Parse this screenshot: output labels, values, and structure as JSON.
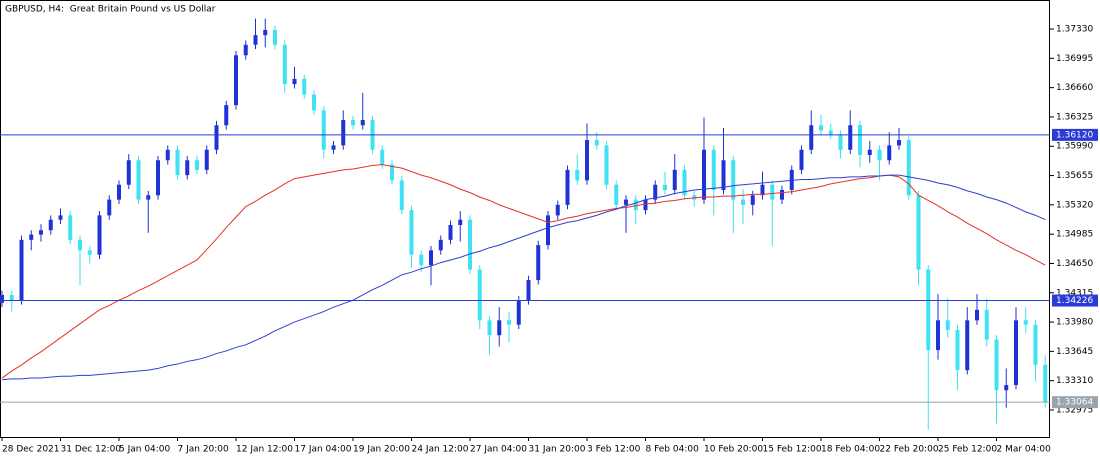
{
  "chart_data": {
    "type": "candlestick",
    "title": "GBPUSD, H4:  Great Britain Pound vs US Dollar",
    "up_color": "#1f32d6",
    "down_color": "#3ee2f2",
    "ylim": [
      1.32666,
      1.37662
    ],
    "yticks": [
      {
        "value": 1.3733,
        "label": "1.37330"
      },
      {
        "value": 1.36995,
        "label": "1.36995"
      },
      {
        "value": 1.3666,
        "label": "1.36660"
      },
      {
        "value": 1.36325,
        "label": "1.36325"
      },
      {
        "value": 1.3599,
        "label": "1.35990"
      },
      {
        "value": 1.35655,
        "label": "1.35655"
      },
      {
        "value": 1.3532,
        "label": "1.35320"
      },
      {
        "value": 1.34985,
        "label": "1.34985"
      },
      {
        "value": 1.3465,
        "label": "1.34650"
      },
      {
        "value": 1.34315,
        "label": "1.34315"
      },
      {
        "value": 1.3398,
        "label": "1.33980"
      },
      {
        "value": 1.33645,
        "label": "1.33645"
      },
      {
        "value": 1.3331,
        "label": "1.33310"
      },
      {
        "value": 1.32975,
        "label": "1.32975"
      }
    ],
    "hlines": [
      {
        "value": 1.3612,
        "label": "1.36120",
        "color": "#2b3bd6"
      },
      {
        "value": 1.34226,
        "label": "1.34226",
        "color": "#2b3bd6"
      },
      {
        "value": 1.33064,
        "label": "1.33064",
        "color": "#9aa4ad"
      }
    ],
    "categories": [
      "28 Dec 2021",
      null,
      null,
      null,
      null,
      null,
      "31 Dec 12:00",
      null,
      null,
      null,
      null,
      null,
      "5 Jan 04:00",
      null,
      null,
      null,
      null,
      null,
      "7 Jan 20:00",
      null,
      null,
      null,
      null,
      null,
      "12 Jan 12:00",
      null,
      null,
      null,
      null,
      null,
      "17 Jan 04:00",
      null,
      null,
      null,
      null,
      null,
      "19 Jan 20:00",
      null,
      null,
      null,
      null,
      null,
      "24 Jan 12:00",
      null,
      null,
      null,
      null,
      null,
      "27 Jan 04:00",
      null,
      null,
      null,
      null,
      null,
      "31 Jan 20:00",
      null,
      null,
      null,
      null,
      null,
      "3 Feb 12:00",
      null,
      null,
      null,
      null,
      null,
      "8 Feb 04:00",
      null,
      null,
      null,
      null,
      null,
      "10 Feb 20:00",
      null,
      null,
      null,
      null,
      null,
      "15 Feb 12:00",
      null,
      null,
      null,
      null,
      null,
      "18 Feb 04:00",
      null,
      null,
      null,
      null,
      null,
      "22 Feb 20:00",
      null,
      null,
      null,
      null,
      null,
      "25 Feb 12:00",
      null,
      null,
      null,
      null,
      null,
      "2 Mar 04:00",
      null,
      null,
      null,
      null,
      null
    ],
    "ohlc": [
      [
        1.342,
        1.3434,
        1.3415,
        1.3429
      ],
      [
        1.3429,
        1.3434,
        1.341,
        1.3423
      ],
      [
        1.3423,
        1.3497,
        1.3418,
        1.3492
      ],
      [
        1.3492,
        1.3503,
        1.348,
        1.3498
      ],
      [
        1.3498,
        1.351,
        1.349,
        1.3503
      ],
      [
        1.3503,
        1.352,
        1.3498,
        1.3515
      ],
      [
        1.3515,
        1.3528,
        1.351,
        1.352
      ],
      [
        1.352,
        1.3525,
        1.3487,
        1.3492
      ],
      [
        1.3492,
        1.3497,
        1.344,
        1.348
      ],
      [
        1.348,
        1.3485,
        1.3465,
        1.3475
      ],
      [
        1.3475,
        1.3525,
        1.347,
        1.352
      ],
      [
        1.352,
        1.3543,
        1.3515,
        1.3538
      ],
      [
        1.3538,
        1.356,
        1.3533,
        1.3555
      ],
      [
        1.3555,
        1.359,
        1.355,
        1.3583
      ],
      [
        1.3583,
        1.3588,
        1.3533,
        1.3538
      ],
      [
        1.3538,
        1.3548,
        1.35,
        1.3543
      ],
      [
        1.3543,
        1.3588,
        1.3538,
        1.3583
      ],
      [
        1.3583,
        1.36,
        1.3578,
        1.3595
      ],
      [
        1.3595,
        1.36,
        1.3561,
        1.3566
      ],
      [
        1.3566,
        1.3588,
        1.3561,
        1.3583
      ],
      [
        1.3583,
        1.3588,
        1.3567,
        1.3572
      ],
      [
        1.3572,
        1.36,
        1.3567,
        1.3595
      ],
      [
        1.3595,
        1.3628,
        1.359,
        1.3623
      ],
      [
        1.3623,
        1.3651,
        1.3618,
        1.3646
      ],
      [
        1.3646,
        1.3708,
        1.3641,
        1.3703
      ],
      [
        1.3703,
        1.372,
        1.3698,
        1.3715
      ],
      [
        1.3715,
        1.3745,
        1.371,
        1.3726
      ],
      [
        1.3726,
        1.3745,
        1.3712,
        1.3732
      ],
      [
        1.3732,
        1.3737,
        1.371,
        1.3715
      ],
      [
        1.3715,
        1.372,
        1.366,
        1.367
      ],
      [
        1.367,
        1.369,
        1.3665,
        1.3676
      ],
      [
        1.3676,
        1.3681,
        1.3653,
        1.3658
      ],
      [
        1.3658,
        1.3663,
        1.3635,
        1.364
      ],
      [
        1.364,
        1.3645,
        1.3585,
        1.3595
      ],
      [
        1.3595,
        1.3605,
        1.359,
        1.36
      ],
      [
        1.36,
        1.364,
        1.3595,
        1.3629
      ],
      [
        1.3629,
        1.3634,
        1.3618,
        1.3623
      ],
      [
        1.3623,
        1.366,
        1.3618,
        1.3629
      ],
      [
        1.3629,
        1.3634,
        1.359,
        1.3595
      ],
      [
        1.3595,
        1.36,
        1.3573,
        1.3578
      ],
      [
        1.3578,
        1.3583,
        1.3555,
        1.356
      ],
      [
        1.356,
        1.3565,
        1.3521,
        1.3526
      ],
      [
        1.3526,
        1.3531,
        1.346,
        1.3475
      ],
      [
        1.3475,
        1.348,
        1.3455,
        1.3463
      ],
      [
        1.3463,
        1.3485,
        1.344,
        1.348
      ],
      [
        1.348,
        1.3497,
        1.3475,
        1.3492
      ],
      [
        1.3492,
        1.3514,
        1.3487,
        1.3509
      ],
      [
        1.3509,
        1.3525,
        1.349,
        1.3515
      ],
      [
        1.3515,
        1.352,
        1.3453,
        1.3458
      ],
      [
        1.3458,
        1.3463,
        1.339,
        1.34
      ],
      [
        1.34,
        1.3405,
        1.336,
        1.3383
      ],
      [
        1.3383,
        1.3415,
        1.337,
        1.34
      ],
      [
        1.34,
        1.341,
        1.3375,
        1.3395
      ],
      [
        1.3395,
        1.3428,
        1.339,
        1.3423
      ],
      [
        1.3423,
        1.3451,
        1.3418,
        1.3446
      ],
      [
        1.3446,
        1.3491,
        1.3441,
        1.3486
      ],
      [
        1.3486,
        1.3525,
        1.3481,
        1.352
      ],
      [
        1.352,
        1.3537,
        1.3515,
        1.3532
      ],
      [
        1.3532,
        1.3577,
        1.3527,
        1.3572
      ],
      [
        1.3572,
        1.359,
        1.3555,
        1.356
      ],
      [
        1.356,
        1.3625,
        1.3555,
        1.3606
      ],
      [
        1.3606,
        1.3615,
        1.3595,
        1.36
      ],
      [
        1.36,
        1.3605,
        1.355,
        1.3555
      ],
      [
        1.3555,
        1.356,
        1.3527,
        1.3532
      ],
      [
        1.3532,
        1.3543,
        1.35,
        1.3538
      ],
      [
        1.3538,
        1.3543,
        1.351,
        1.3526
      ],
      [
        1.3526,
        1.3543,
        1.3521,
        1.3538
      ],
      [
        1.3538,
        1.356,
        1.3533,
        1.3555
      ],
      [
        1.3555,
        1.357,
        1.3544,
        1.3549
      ],
      [
        1.3549,
        1.359,
        1.3544,
        1.3572
      ],
      [
        1.3572,
        1.3577,
        1.3538,
        1.3543
      ],
      [
        1.3543,
        1.3548,
        1.353,
        1.3538
      ],
      [
        1.3538,
        1.3632,
        1.3533,
        1.3595
      ],
      [
        1.3595,
        1.36,
        1.352,
        1.3549
      ],
      [
        1.3549,
        1.362,
        1.3544,
        1.3583
      ],
      [
        1.3583,
        1.3588,
        1.35,
        1.3538
      ],
      [
        1.3538,
        1.355,
        1.351,
        1.3532
      ],
      [
        1.3532,
        1.3548,
        1.352,
        1.3543
      ],
      [
        1.3543,
        1.357,
        1.3538,
        1.3555
      ],
      [
        1.3555,
        1.356,
        1.3485,
        1.3538
      ],
      [
        1.3538,
        1.3554,
        1.3533,
        1.3549
      ],
      [
        1.3549,
        1.3577,
        1.3544,
        1.3572
      ],
      [
        1.3572,
        1.36,
        1.3567,
        1.3595
      ],
      [
        1.3595,
        1.364,
        1.359,
        1.3623
      ],
      [
        1.3623,
        1.3635,
        1.3612,
        1.3617
      ],
      [
        1.3617,
        1.3625,
        1.3607,
        1.3612
      ],
      [
        1.3612,
        1.3617,
        1.3585,
        1.3595
      ],
      [
        1.3595,
        1.364,
        1.359,
        1.3623
      ],
      [
        1.3623,
        1.3628,
        1.3575,
        1.3589
      ],
      [
        1.3589,
        1.3605,
        1.358,
        1.3595
      ],
      [
        1.3595,
        1.36,
        1.356,
        1.3583
      ],
      [
        1.3583,
        1.3615,
        1.3578,
        1.36
      ],
      [
        1.36,
        1.362,
        1.3595,
        1.3606
      ],
      [
        1.3606,
        1.3611,
        1.3538,
        1.3543
      ],
      [
        1.3543,
        1.3548,
        1.344,
        1.3458
      ],
      [
        1.3458,
        1.3463,
        1.3275,
        1.3366
      ],
      [
        1.3366,
        1.343,
        1.3355,
        1.34
      ],
      [
        1.34,
        1.3425,
        1.338,
        1.3389
      ],
      [
        1.3389,
        1.3395,
        1.332,
        1.3343
      ],
      [
        1.3343,
        1.3415,
        1.3338,
        1.34
      ],
      [
        1.34,
        1.343,
        1.3395,
        1.3412
      ],
      [
        1.3412,
        1.3425,
        1.337,
        1.3378
      ],
      [
        1.3378,
        1.3383,
        1.3282,
        1.332
      ],
      [
        1.332,
        1.3345,
        1.33,
        1.3326
      ],
      [
        1.3326,
        1.3415,
        1.3321,
        1.34
      ],
      [
        1.34,
        1.3415,
        1.3385,
        1.3395
      ],
      [
        1.3395,
        1.34,
        1.333,
        1.3349
      ],
      [
        1.3349,
        1.336,
        1.33,
        1.3306
      ]
    ],
    "series": [
      {
        "color": "#e8302a",
        "values": [
          1.3334,
          1.3342,
          1.3349,
          1.3357,
          1.3364,
          1.3372,
          1.338,
          1.3388,
          1.3396,
          1.3404,
          1.3412,
          1.3417,
          1.3423,
          1.3428,
          1.3434,
          1.3439,
          1.3445,
          1.3451,
          1.3457,
          1.3463,
          1.3469,
          1.3481,
          1.3493,
          1.3506,
          1.3518,
          1.353,
          1.3536,
          1.3543,
          1.3549,
          1.3556,
          1.3562,
          1.3564,
          1.3566,
          1.3568,
          1.357,
          1.3572,
          1.3573,
          1.3575,
          1.3577,
          1.3578,
          1.3576,
          1.3574,
          1.357,
          1.3566,
          1.3563,
          1.3559,
          1.3555,
          1.355,
          1.3546,
          1.3541,
          1.3537,
          1.3532,
          1.3528,
          1.3524,
          1.352,
          1.3516,
          1.3512,
          1.3514,
          1.3517,
          1.3519,
          1.3522,
          1.3524,
          1.3526,
          1.3528,
          1.3529,
          1.3531,
          1.3533,
          1.3534,
          1.3536,
          1.3537,
          1.3539,
          1.354,
          1.3541,
          1.3541,
          1.3542,
          1.3542,
          1.3543,
          1.3544,
          1.3544,
          1.3545,
          1.3546,
          1.3547,
          1.3549,
          1.3551,
          1.3553,
          1.3556,
          1.3558,
          1.356,
          1.3562,
          1.3563,
          1.3565,
          1.3566,
          1.3564,
          1.3556,
          1.3543,
          1.3537,
          1.3531,
          1.3524,
          1.3518,
          1.3511,
          1.3505,
          1.3499,
          1.3492,
          1.3486,
          1.348,
          1.3475,
          1.3469,
          1.3463
        ]
      },
      {
        "color": "#2f3fd0",
        "values": [
          1.3332,
          1.3333,
          1.3333,
          1.3334,
          1.3334,
          1.3335,
          1.3336,
          1.3336,
          1.3337,
          1.3337,
          1.3338,
          1.3339,
          1.334,
          1.3341,
          1.3342,
          1.3343,
          1.3345,
          1.3348,
          1.335,
          1.3353,
          1.3355,
          1.3358,
          1.3362,
          1.3365,
          1.3369,
          1.3372,
          1.3377,
          1.3382,
          1.3388,
          1.3393,
          1.3398,
          1.3402,
          1.3406,
          1.341,
          1.3415,
          1.3419,
          1.3423,
          1.3429,
          1.3435,
          1.344,
          1.3446,
          1.3452,
          1.3455,
          1.3459,
          1.3462,
          1.3466,
          1.3469,
          1.3472,
          1.3476,
          1.3479,
          1.3483,
          1.3486,
          1.349,
          1.3494,
          1.3498,
          1.3502,
          1.3506,
          1.3509,
          1.3512,
          1.3514,
          1.3517,
          1.352,
          1.3524,
          1.3527,
          1.3531,
          1.3534,
          1.3538,
          1.354,
          1.3542,
          1.3545,
          1.3547,
          1.3549,
          1.355,
          1.3551,
          1.3552,
          1.3554,
          1.3555,
          1.3556,
          1.3557,
          1.3558,
          1.3559,
          1.356,
          1.3561,
          1.3561,
          1.3562,
          1.3563,
          1.3563,
          1.3564,
          1.3564,
          1.3565,
          1.3565,
          1.3566,
          1.3566,
          1.3564,
          1.3562,
          1.356,
          1.3557,
          1.3555,
          1.3552,
          1.3548,
          1.3545,
          1.3541,
          1.3538,
          1.3534,
          1.3529,
          1.3524,
          1.352,
          1.3515
        ]
      }
    ]
  }
}
